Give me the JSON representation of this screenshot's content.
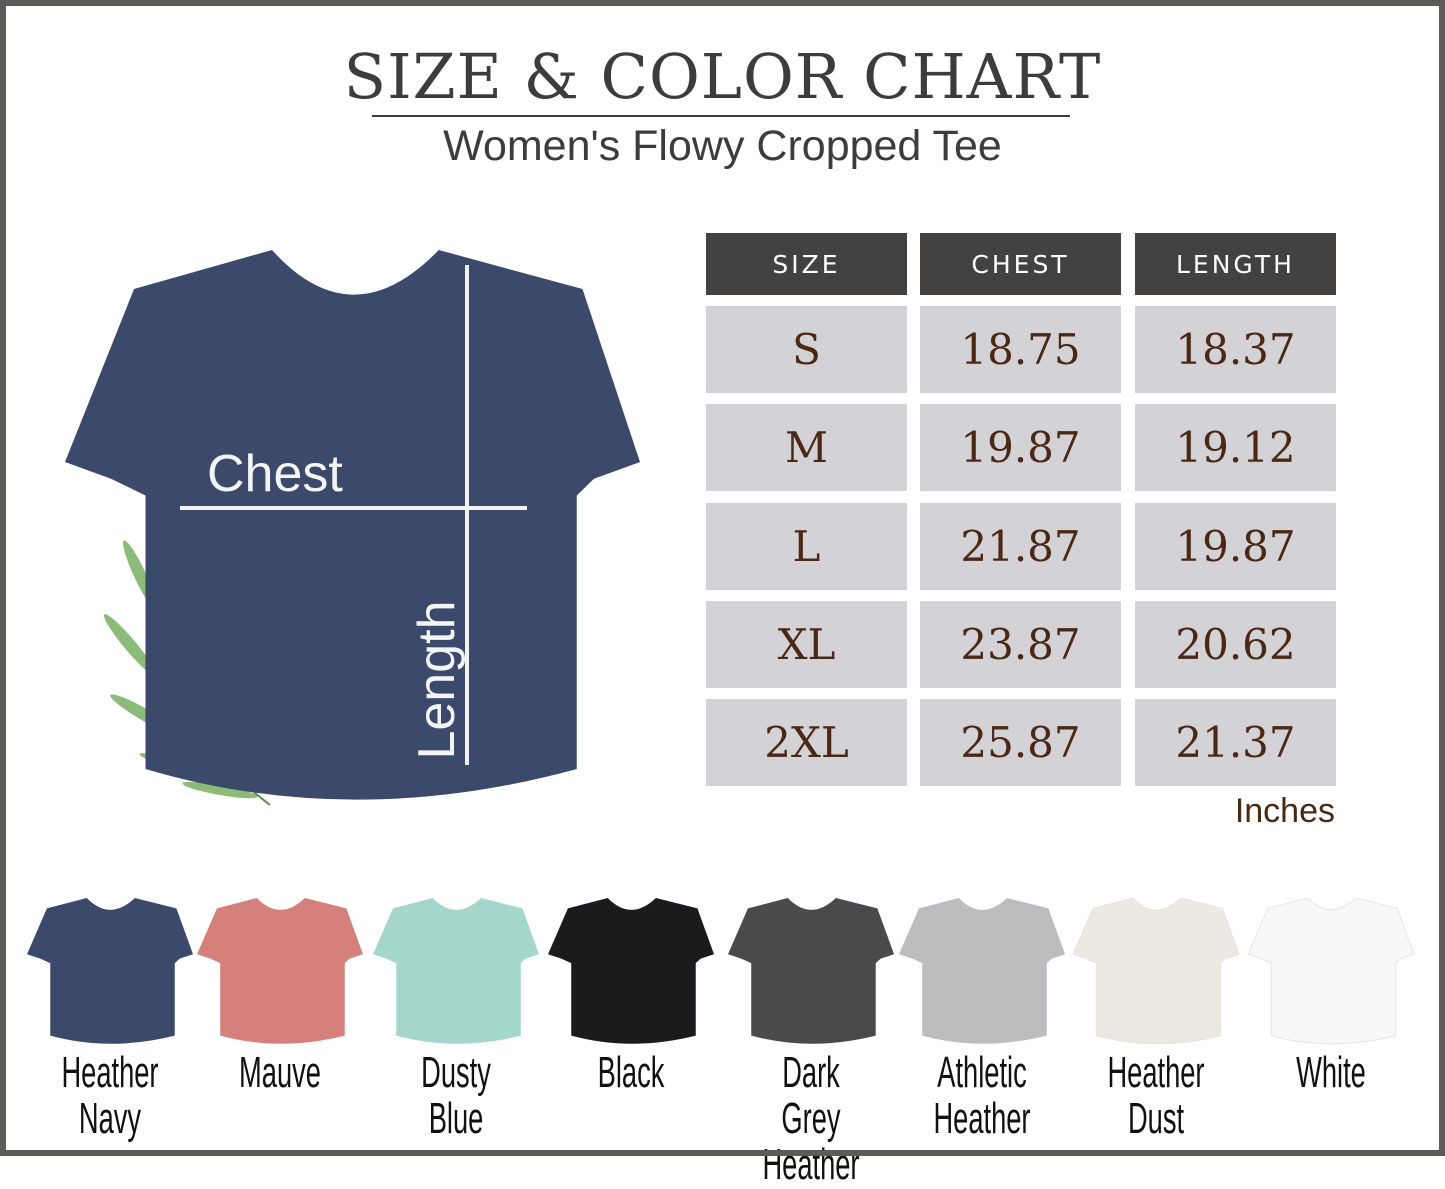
{
  "header": {
    "title": "SIZE & COLOR CHART",
    "subtitle": "Women's Flowy Cropped Tee"
  },
  "diagram": {
    "chest_label": "Chest",
    "length_label": "Length",
    "shirt_color": "#3b4a6b"
  },
  "size_table": {
    "columns": [
      "SIZE",
      "CHEST",
      "LENGTH"
    ],
    "rows": [
      [
        "S",
        "18.75",
        "18.37"
      ],
      [
        "M",
        "19.87",
        "19.12"
      ],
      [
        "L",
        "21.87",
        "19.87"
      ],
      [
        "XL",
        "23.87",
        "20.62"
      ],
      [
        "2XL",
        "25.87",
        "21.37"
      ]
    ],
    "unit": "Inches"
  },
  "colors": [
    {
      "line1": "Heather",
      "line2": "Navy",
      "hex": "#3b4a6b"
    },
    {
      "line1": "Mauve",
      "line2": "",
      "hex": "#d5807b"
    },
    {
      "line1": "Dusty",
      "line2": "Blue",
      "hex": "#a5d6cb"
    },
    {
      "line1": "Black",
      "line2": "",
      "hex": "#1b1b1d"
    },
    {
      "line1": "Dark Grey",
      "line2": "Heather",
      "hex": "#4a4a4c"
    },
    {
      "line1": "Athletic",
      "line2": "Heather",
      "hex": "#bdbdbf"
    },
    {
      "line1": "Heather",
      "line2": "Dust",
      "hex": "#ece8e2"
    },
    {
      "line1": "White",
      "line2": "",
      "hex": "#f8f8f8"
    }
  ]
}
